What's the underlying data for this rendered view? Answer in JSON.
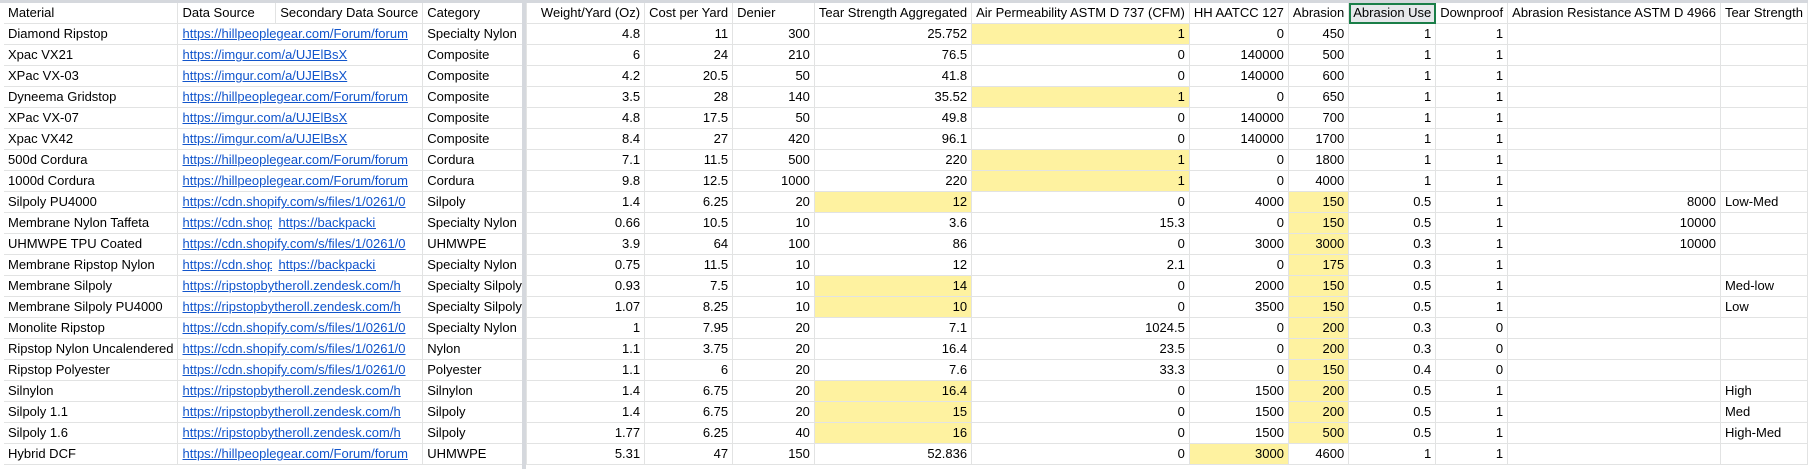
{
  "colors": {
    "highlight": "#fef2a0",
    "link": "#1155cc",
    "selection": "#1a7e48"
  },
  "headers": [
    "Material",
    "Data Source",
    "Secondary Data Source",
    "Category",
    "Weight/Yard (Oz)",
    "Cost per Yard",
    "Denier",
    "Tear Strength Aggregated",
    "Air Permeability ASTM D 737 (CFM)",
    "HH AATCC 127",
    "Abrasion",
    "Abrasion Use",
    "Downproof",
    "Abrasion Resistance ASTM D 4966",
    "Tear Strength"
  ],
  "rows": [
    {
      "material": "Diamond Ripstop",
      "src": "https://hillpeoplegear.com/Forum/forum",
      "src2": "",
      "category": "Specialty Nylon",
      "weight": "4.8",
      "cost": "11",
      "denier": "300",
      "tear": "25.752",
      "air": "1",
      "hh": "0",
      "abr": "450",
      "abru": "1",
      "down": "1",
      "astm": "",
      "ts": ""
    },
    {
      "material": "Xpac VX21",
      "src": "https://imgur.com/a/UJElBsX",
      "src2": "",
      "category": "Composite",
      "weight": "6",
      "cost": "24",
      "denier": "210",
      "tear": "76.5",
      "air": "0",
      "hh": "140000",
      "abr": "500",
      "abru": "1",
      "down": "1",
      "astm": "",
      "ts": ""
    },
    {
      "material": "XPac VX-03",
      "src": "https://imgur.com/a/UJElBsX",
      "src2": "",
      "category": "Composite",
      "weight": "4.2",
      "cost": "20.5",
      "denier": "50",
      "tear": "41.8",
      "air": "0",
      "hh": "140000",
      "abr": "600",
      "abru": "1",
      "down": "1",
      "astm": "",
      "ts": ""
    },
    {
      "material": "Dyneema Gridstop",
      "src": "https://hillpeoplegear.com/Forum/forum",
      "src2": "",
      "category": "Composite",
      "weight": "3.5",
      "cost": "28",
      "denier": "140",
      "tear": "35.52",
      "air": "1",
      "hh": "0",
      "abr": "650",
      "abru": "1",
      "down": "1",
      "astm": "",
      "ts": ""
    },
    {
      "material": "XPac VX-07",
      "src": "https://imgur.com/a/UJElBsX",
      "src2": "",
      "category": "Composite",
      "weight": "4.8",
      "cost": "17.5",
      "denier": "50",
      "tear": "49.8",
      "air": "0",
      "hh": "140000",
      "abr": "700",
      "abru": "1",
      "down": "1",
      "astm": "",
      "ts": ""
    },
    {
      "material": "Xpac VX42",
      "src": "https://imgur.com/a/UJElBsX",
      "src2": "",
      "category": "Composite",
      "weight": "8.4",
      "cost": "27",
      "denier": "420",
      "tear": "96.1",
      "air": "0",
      "hh": "140000",
      "abr": "1700",
      "abru": "1",
      "down": "1",
      "astm": "",
      "ts": ""
    },
    {
      "material": "500d Cordura",
      "src": "https://hillpeoplegear.com/Forum/forum",
      "src2": "",
      "category": "Cordura",
      "weight": "7.1",
      "cost": "11.5",
      "denier": "500",
      "tear": "220",
      "air": "1",
      "hh": "0",
      "abr": "1800",
      "abru": "1",
      "down": "1",
      "astm": "",
      "ts": ""
    },
    {
      "material": "1000d Cordura",
      "src": "https://hillpeoplegear.com/Forum/forum",
      "src2": "",
      "category": "Cordura",
      "weight": "9.8",
      "cost": "12.5",
      "denier": "1000",
      "tear": "220",
      "air": "1",
      "hh": "0",
      "abr": "4000",
      "abru": "1",
      "down": "1",
      "astm": "",
      "ts": ""
    },
    {
      "material": "Silpoly PU4000",
      "src": "https://cdn.shopify.com/s/files/1/0261/0",
      "src2": "",
      "category": "Silpoly",
      "weight": "1.4",
      "cost": "6.25",
      "denier": "20",
      "tear": "12",
      "air": "0",
      "hh": "4000",
      "abr": "150",
      "abru": "0.5",
      "down": "1",
      "astm": "8000",
      "ts": "Low-Med"
    },
    {
      "material": "Membrane Nylon Taffeta",
      "src": "https://cdn.shopify.",
      "src2": "https://backpacking",
      "category": "Specialty Nylon",
      "weight": "0.66",
      "cost": "10.5",
      "denier": "10",
      "tear": "3.6",
      "air": "15.3",
      "hh": "0",
      "abr": "150",
      "abru": "0.5",
      "down": "1",
      "astm": "10000",
      "ts": ""
    },
    {
      "material": "UHMWPE TPU Coated",
      "src": "https://cdn.shopify.com/s/files/1/0261/0",
      "src2": "",
      "category": "UHMWPE",
      "weight": "3.9",
      "cost": "64",
      "denier": "100",
      "tear": "86",
      "air": "0",
      "hh": "3000",
      "abr": "3000",
      "abru": "0.3",
      "down": "1",
      "astm": "10000",
      "ts": ""
    },
    {
      "material": "Membrane Ripstop Nylon",
      "src": "https://cdn.shopify.",
      "src2": "https://backpacking",
      "category": "Specialty Nylon",
      "weight": "0.75",
      "cost": "11.5",
      "denier": "10",
      "tear": "12",
      "air": "2.1",
      "hh": "0",
      "abr": "175",
      "abru": "0.3",
      "down": "1",
      "astm": "",
      "ts": ""
    },
    {
      "material": "Membrane Silpoly",
      "src": "https://ripstopbytheroll.zendesk.com/h",
      "src2": "",
      "category": "Specialty Silpoly",
      "weight": "0.93",
      "cost": "7.5",
      "denier": "10",
      "tear": "14",
      "air": "0",
      "hh": "2000",
      "abr": "150",
      "abru": "0.5",
      "down": "1",
      "astm": "",
      "ts": "Med-low"
    },
    {
      "material": "Membrane Silpoly PU4000",
      "src": "https://ripstopbytheroll.zendesk.com/h",
      "src2": "",
      "category": "Specialty Silpoly",
      "weight": "1.07",
      "cost": "8.25",
      "denier": "10",
      "tear": "10",
      "air": "0",
      "hh": "3500",
      "abr": "150",
      "abru": "0.5",
      "down": "1",
      "astm": "",
      "ts": "Low"
    },
    {
      "material": "Monolite Ripstop",
      "src": "https://cdn.shopify.com/s/files/1/0261/0",
      "src2": "",
      "category": "Specialty Nylon",
      "weight": "1",
      "cost": "7.95",
      "denier": "20",
      "tear": "7.1",
      "air": "1024.5",
      "hh": "0",
      "abr": "200",
      "abru": "0.3",
      "down": "0",
      "astm": "",
      "ts": ""
    },
    {
      "material": "Ripstop Nylon Uncalendered",
      "src": "https://cdn.shopify.com/s/files/1/0261/0",
      "src2": "",
      "category": "Nylon",
      "weight": "1.1",
      "cost": "3.75",
      "denier": "20",
      "tear": "16.4",
      "air": "23.5",
      "hh": "0",
      "abr": "200",
      "abru": "0.3",
      "down": "0",
      "astm": "",
      "ts": ""
    },
    {
      "material": "Ripstop Polyester",
      "src": "https://cdn.shopify.com/s/files/1/0261/0",
      "src2": "",
      "category": "Polyester",
      "weight": "1.1",
      "cost": "6",
      "denier": "20",
      "tear": "7.6",
      "air": "33.3",
      "hh": "0",
      "abr": "150",
      "abru": "0.4",
      "down": "0",
      "astm": "",
      "ts": ""
    },
    {
      "material": "Silnylon",
      "src": "https://ripstopbytheroll.zendesk.com/h",
      "src2": "",
      "category": "Silnylon",
      "weight": "1.4",
      "cost": "6.75",
      "denier": "20",
      "tear": "16.4",
      "air": "0",
      "hh": "1500",
      "abr": "200",
      "abru": "0.5",
      "down": "1",
      "astm": "",
      "ts": "High"
    },
    {
      "material": "Silpoly 1.1",
      "src": "https://ripstopbytheroll.zendesk.com/h",
      "src2": "",
      "category": "Silpoly",
      "weight": "1.4",
      "cost": "6.75",
      "denier": "20",
      "tear": "15",
      "air": "0",
      "hh": "1500",
      "abr": "200",
      "abru": "0.5",
      "down": "1",
      "astm": "",
      "ts": "Med"
    },
    {
      "material": "Silpoly 1.6",
      "src": "https://ripstopbytheroll.zendesk.com/h",
      "src2": "",
      "category": "Silpoly",
      "weight": "1.77",
      "cost": "6.25",
      "denier": "40",
      "tear": "16",
      "air": "0",
      "hh": "1500",
      "abr": "500",
      "abru": "0.5",
      "down": "1",
      "astm": "",
      "ts": "High-Med"
    },
    {
      "material": "Hybrid DCF",
      "src": "https://hillpeoplegear.com/Forum/forum",
      "src2": "",
      "category": "UHMWPE",
      "weight": "5.31",
      "cost": "47",
      "denier": "150",
      "tear": "52.836",
      "air": "0",
      "hh": "3000",
      "abr": "4600",
      "abru": "1",
      "down": "1",
      "astm": "",
      "ts": ""
    }
  ]
}
